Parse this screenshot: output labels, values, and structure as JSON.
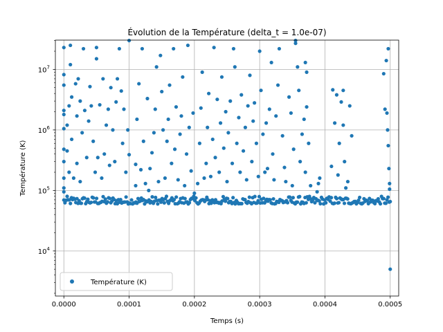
{
  "chart_data": {
    "type": "scatter",
    "title": "Évolution de la Température (delta_t = 1.0e-07)",
    "xlabel": "Temps (s)",
    "ylabel": "Température (K)",
    "xlim": [
      -1.3e-05,
      0.000513
    ],
    "ylim": [
      1800,
      30500000
    ],
    "yscale": "log",
    "grid": true,
    "legend_position": "lower-left",
    "x_ticks": [
      {
        "value": 0.0,
        "label": "0.0000"
      },
      {
        "value": 0.0001,
        "label": "0.0001"
      },
      {
        "value": 0.0002,
        "label": "0.0002"
      },
      {
        "value": 0.0003,
        "label": "0.0003"
      },
      {
        "value": 0.0004,
        "label": "0.0004"
      },
      {
        "value": 0.0005,
        "label": "0.0005"
      }
    ],
    "y_ticks": [
      {
        "value": 10000,
        "base": "10",
        "exp": "4"
      },
      {
        "value": 100000,
        "base": "10",
        "exp": "5"
      },
      {
        "value": 1000000,
        "base": "10",
        "exp": "6"
      },
      {
        "value": 10000000,
        "base": "10",
        "exp": "7"
      }
    ],
    "series": [
      {
        "name": "Température (K)",
        "color": "#1f77b4",
        "marker": "circle",
        "baseline_band": {
          "x_start": 0.0,
          "x_end": 0.0005,
          "y_min": 60000,
          "y_max": 80000,
          "n_points": 300
        },
        "points": [
          [
            0.0,
            8200000
          ],
          [
            0.0,
            2100000
          ],
          [
            0.0,
            1050000
          ],
          [
            0.0,
            480000
          ],
          [
            0.0,
            300000
          ],
          [
            0.0,
            160000
          ],
          [
            0.0,
            110000
          ],
          [
            0.0,
            95000
          ],
          [
            0.0,
            1800000
          ],
          [
            0.0,
            5500000
          ],
          [
            0.0,
            23000000
          ],
          [
            5e-06,
            450000
          ],
          [
            5e-06,
            1200000
          ],
          [
            8e-06,
            200000
          ],
          [
            8e-06,
            2500000
          ],
          [
            1e-05,
            25000000
          ],
          [
            1e-05,
            12000000
          ],
          [
            1.2e-05,
            3500000
          ],
          [
            1.2e-05,
            700000
          ],
          [
            1.5e-05,
            160000
          ],
          [
            1.8e-05,
            5800000
          ],
          [
            2e-05,
            1700000
          ],
          [
            2e-05,
            280000
          ],
          [
            2.2e-05,
            7000000
          ],
          [
            2.5e-05,
            140000
          ],
          [
            2.5e-05,
            3000000
          ],
          [
            2.8e-05,
            900000
          ],
          [
            3e-05,
            22000000
          ],
          [
            3.2e-05,
            2100000
          ],
          [
            3.5e-05,
            350000
          ],
          [
            3.8e-05,
            1400000
          ],
          [
            4e-05,
            5200000
          ],
          [
            4.2e-05,
            2500000
          ],
          [
            4.5e-05,
            650000
          ],
          [
            4.8e-05,
            200000
          ],
          [
            5e-05,
            23000000
          ],
          [
            5e-05,
            15000000
          ],
          [
            5.2e-05,
            350000
          ],
          [
            5.5e-05,
            2600000
          ],
          [
            5.8e-05,
            160000
          ],
          [
            6e-05,
            7000000
          ],
          [
            6.2e-05,
            400000
          ],
          [
            6.5e-05,
            1200000
          ],
          [
            6.8e-05,
            2200000
          ],
          [
            7e-05,
            260000
          ],
          [
            7.2e-05,
            5000000
          ],
          [
            7.5e-05,
            1000000
          ],
          [
            7.8e-05,
            300000
          ],
          [
            8e-05,
            2900000
          ],
          [
            8.2e-05,
            7000000
          ],
          [
            8.5e-05,
            22000000
          ],
          [
            8.8e-05,
            4400000
          ],
          [
            9e-05,
            600000
          ],
          [
            9.2e-05,
            2200000
          ],
          [
            9.5e-05,
            200000
          ],
          [
            9.8e-05,
            1000000
          ],
          [
            0.0001,
            390000
          ],
          [
            0.0001,
            30000000
          ],
          [
            0.00011,
            120000
          ],
          [
            0.00011,
            270000
          ],
          [
            0.000112,
            1500000
          ],
          [
            0.000115,
            5800000
          ],
          [
            0.000118,
            220000
          ],
          [
            0.00012,
            22000000
          ],
          [
            0.000122,
            650000
          ],
          [
            0.000125,
            130000
          ],
          [
            0.000128,
            3300000
          ],
          [
            0.00013,
            100000
          ],
          [
            0.000132,
            230000
          ],
          [
            0.000135,
            420000
          ],
          [
            0.000138,
            900000
          ],
          [
            0.00014,
            2200000
          ],
          [
            0.000142,
            11000000
          ],
          [
            0.000145,
            140000
          ],
          [
            0.000148,
            17000000
          ],
          [
            0.00015,
            4300000
          ],
          [
            0.000152,
            1000000
          ],
          [
            0.000155,
            160000
          ],
          [
            0.000158,
            650000
          ],
          [
            0.00016,
            1500000
          ],
          [
            0.000162,
            5500000
          ],
          [
            0.000165,
            280000
          ],
          [
            0.000168,
            22000000
          ],
          [
            0.00017,
            480000
          ],
          [
            0.000172,
            2400000
          ],
          [
            0.000175,
            150000
          ],
          [
            0.000178,
            850000
          ],
          [
            0.00018,
            1700000
          ],
          [
            0.000182,
            7500000
          ],
          [
            0.000185,
            120000
          ],
          [
            0.000188,
            400000
          ],
          [
            0.00019,
            25000000
          ],
          [
            0.000192,
            1100000
          ],
          [
            0.000195,
            210000
          ],
          [
            0.000198,
            1900000
          ],
          [
            0.0002,
            90000
          ],
          [
            0.000205,
            130000
          ],
          [
            0.000208,
            600000
          ],
          [
            0.00021,
            2300000
          ],
          [
            0.000212,
            9000000
          ],
          [
            0.000215,
            160000
          ],
          [
            0.000218,
            280000
          ],
          [
            0.00022,
            1100000
          ],
          [
            0.000222,
            4000000
          ],
          [
            0.000225,
            170000
          ],
          [
            0.000228,
            700000
          ],
          [
            0.00023,
            23000000
          ],
          [
            0.000232,
            350000
          ],
          [
            0.000235,
            3200000
          ],
          [
            0.000238,
            200000
          ],
          [
            0.00024,
            1300000
          ],
          [
            0.000242,
            7500000
          ],
          [
            0.000245,
            500000
          ],
          [
            0.000248,
            2000000
          ],
          [
            0.00025,
            140000
          ],
          [
            0.000252,
            900000
          ],
          [
            0.000255,
            3000000
          ],
          [
            0.000258,
            280000
          ],
          [
            0.00026,
            22000000
          ],
          [
            0.000262,
            11000000
          ],
          [
            0.000265,
            600000
          ],
          [
            0.000268,
            1600000
          ],
          [
            0.00027,
            200000
          ],
          [
            0.000272,
            3800000
          ],
          [
            0.000275,
            450000
          ],
          [
            0.000278,
            1100000
          ],
          [
            0.00028,
            150000
          ],
          [
            0.000282,
            2500000
          ],
          [
            0.000285,
            8000000
          ],
          [
            0.000288,
            300000
          ],
          [
            0.00029,
            1400000
          ],
          [
            0.000292,
            2800000
          ],
          [
            0.000295,
            600000
          ],
          [
            0.000298,
            170000
          ],
          [
            0.0003,
            20000000
          ],
          [
            0.000302,
            4500000
          ],
          [
            0.000305,
            850000
          ],
          [
            0.000308,
            200000
          ],
          [
            0.00031,
            1300000
          ],
          [
            0.000312,
            230000
          ],
          [
            0.000315,
            2200000
          ],
          [
            0.000318,
            13000000
          ],
          [
            0.00032,
            400000
          ],
          [
            0.000322,
            150000
          ],
          [
            0.000325,
            1700000
          ],
          [
            0.000328,
            5500000
          ],
          [
            0.00033,
            22000000
          ],
          [
            0.000335,
            800000
          ],
          [
            0.000338,
            240000
          ],
          [
            0.00034,
            140000
          ],
          [
            0.000345,
            3500000
          ],
          [
            0.000348,
            1900000
          ],
          [
            0.00035,
            120000
          ],
          [
            0.000352,
            480000
          ],
          [
            0.000355,
            27000000
          ],
          [
            0.000355,
            30000000
          ],
          [
            0.000358,
            11000000
          ],
          [
            0.00036,
            4500000
          ],
          [
            0.000362,
            300000
          ],
          [
            0.000365,
            850000
          ],
          [
            0.000368,
            1500000
          ],
          [
            0.00037,
            13000000
          ],
          [
            0.00037,
            200000
          ],
          [
            0.000372,
            9000000
          ],
          [
            0.000372,
            2400000
          ],
          [
            0.000375,
            600000
          ],
          [
            0.000378,
            120000
          ],
          [
            0.000388,
            95000
          ],
          [
            0.00039,
            130000
          ],
          [
            0.000392,
            160000
          ],
          [
            0.00041,
            250000
          ],
          [
            0.000412,
            4600000
          ],
          [
            0.000415,
            1300000
          ],
          [
            0.000418,
            3800000
          ],
          [
            0.00042,
            180000
          ],
          [
            0.000422,
            600000
          ],
          [
            0.000425,
            2900000
          ],
          [
            0.000428,
            1200000
          ],
          [
            0.000428,
            4500000
          ],
          [
            0.00043,
            300000
          ],
          [
            0.000432,
            110000
          ],
          [
            0.000435,
            140000
          ],
          [
            0.000438,
            2500000
          ],
          [
            0.000441,
            800000
          ],
          [
            0.00049,
            8500000
          ],
          [
            0.000492,
            2200000
          ],
          [
            0.000494,
            14000000
          ],
          [
            0.000495,
            1900000
          ],
          [
            0.000496,
            1000000
          ],
          [
            0.000497,
            550000
          ],
          [
            0.000497,
            22000000
          ],
          [
            0.000498,
            230000
          ],
          [
            0.000499,
            130000
          ],
          [
            0.000499,
            105000
          ],
          [
            0.0005,
            5000
          ]
        ]
      }
    ]
  }
}
